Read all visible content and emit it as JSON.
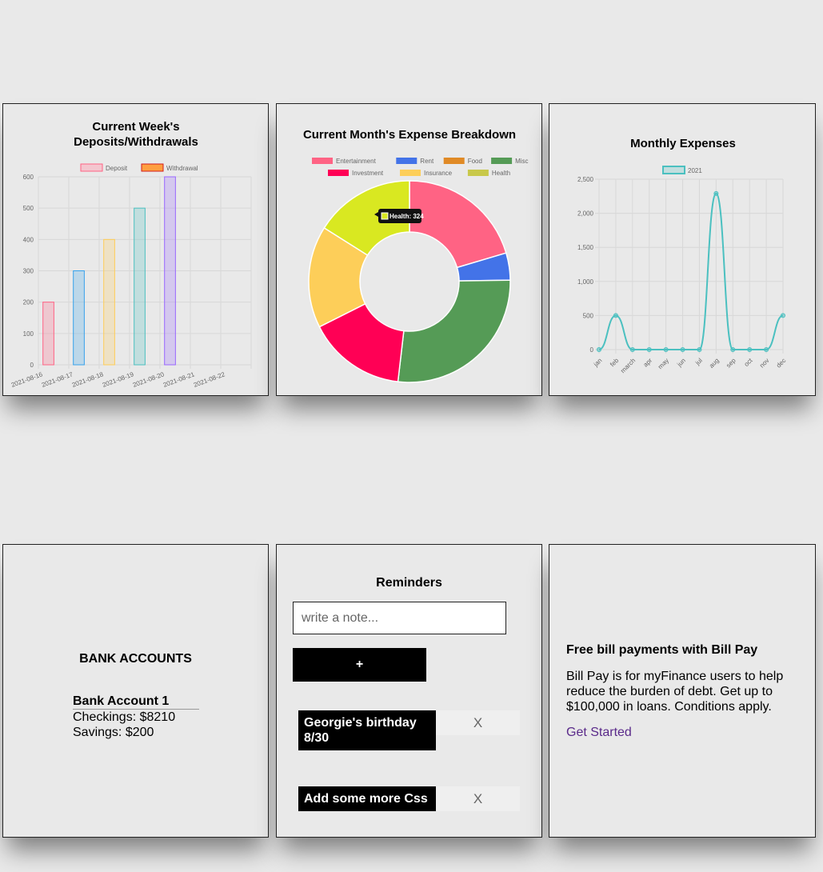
{
  "weekly_card": {
    "title_lines": [
      "Current Week's",
      "Deposits/Withdrawals"
    ],
    "chart_data": {
      "type": "bar",
      "title": "Current Week's Deposits/Withdrawals",
      "categories": [
        "2021-08-16",
        "2021-08-17",
        "2021-08-18",
        "2021-08-19",
        "2021-08-20",
        "2021-08-21",
        "2021-08-22"
      ],
      "values": [
        200,
        300,
        400,
        500,
        600,
        null,
        null
      ],
      "bar_colors": [
        "#ff6384",
        "#36a2eb",
        "#ffcd56",
        "#4bc0c0",
        "#9966ff"
      ],
      "legend": [
        {
          "label": "Deposit",
          "fill": "#f4c6cf",
          "stroke": "#ff6384"
        },
        {
          "label": "Withdrawal",
          "fill": "#ff9f40",
          "stroke": "#d21c1c"
        }
      ],
      "ylim": [
        0,
        600
      ],
      "yticks": [
        0,
        100,
        200,
        300,
        400,
        500,
        600
      ],
      "grid": true,
      "legend_position": "top"
    }
  },
  "expense_card": {
    "title": "Current Month's Expense Breakdown",
    "tooltip": "Health: 324",
    "chart_data": {
      "type": "pie",
      "title": "Current Month's Expense Breakdown",
      "labels": [
        "Entertainment",
        "Rent",
        "Food",
        "Misc",
        "Investment",
        "Insurance",
        "Health"
      ],
      "values": [
        412,
        88,
        0,
        546,
        318,
        330,
        324
      ],
      "colors": [
        "#ff6384",
        "#4373e8",
        "#e08a26",
        "#559b56",
        "#ff0055",
        "#fdce59",
        "#d9e821"
      ],
      "legend_colors": [
        "#ff6384",
        "#4373e8",
        "#e08a26",
        "#559b56",
        "#ff0055",
        "#fdce59",
        "#c8c84a"
      ],
      "donut": true,
      "legend_position": "top"
    }
  },
  "monthly_card": {
    "title": "Monthly Expenses",
    "chart_data": {
      "type": "line",
      "title": "Monthly Expenses",
      "categories": [
        "jan",
        "feb",
        "march",
        "apr",
        "may",
        "jun",
        "jul",
        "aug",
        "sep",
        "oct",
        "nov",
        "dec"
      ],
      "series": [
        {
          "name": "2021",
          "values": [
            0,
            500,
            0,
            0,
            0,
            0,
            0,
            2290,
            0,
            0,
            0,
            500
          ]
        }
      ],
      "color": "#4bc0c0",
      "ylim": [
        0,
        2500
      ],
      "yticks": [
        0,
        500,
        1000,
        1500,
        2000,
        2500
      ],
      "ytick_labels": [
        "0",
        "500",
        "1,000",
        "1,500",
        "2,000",
        "2,500"
      ],
      "grid": true,
      "legend_position": "top"
    }
  },
  "bank": {
    "title": "BANK ACCOUNTS",
    "account_name": "Bank Account 1",
    "checkings": "Checkings: $8210",
    "savings": "Savings: $200"
  },
  "reminders": {
    "title": "Reminders",
    "placeholder": "write a note...",
    "add_label": "+",
    "delete_label": "X",
    "items": [
      "Georgie's birthday 8/30",
      "Add some more Css"
    ]
  },
  "billpay": {
    "title": "Free bill payments with Bill Pay",
    "body": "Bill Pay is for myFinance users to help reduce the burden of debt. Get up to $100,000 in loans. Conditions apply.",
    "link": "Get Started"
  }
}
